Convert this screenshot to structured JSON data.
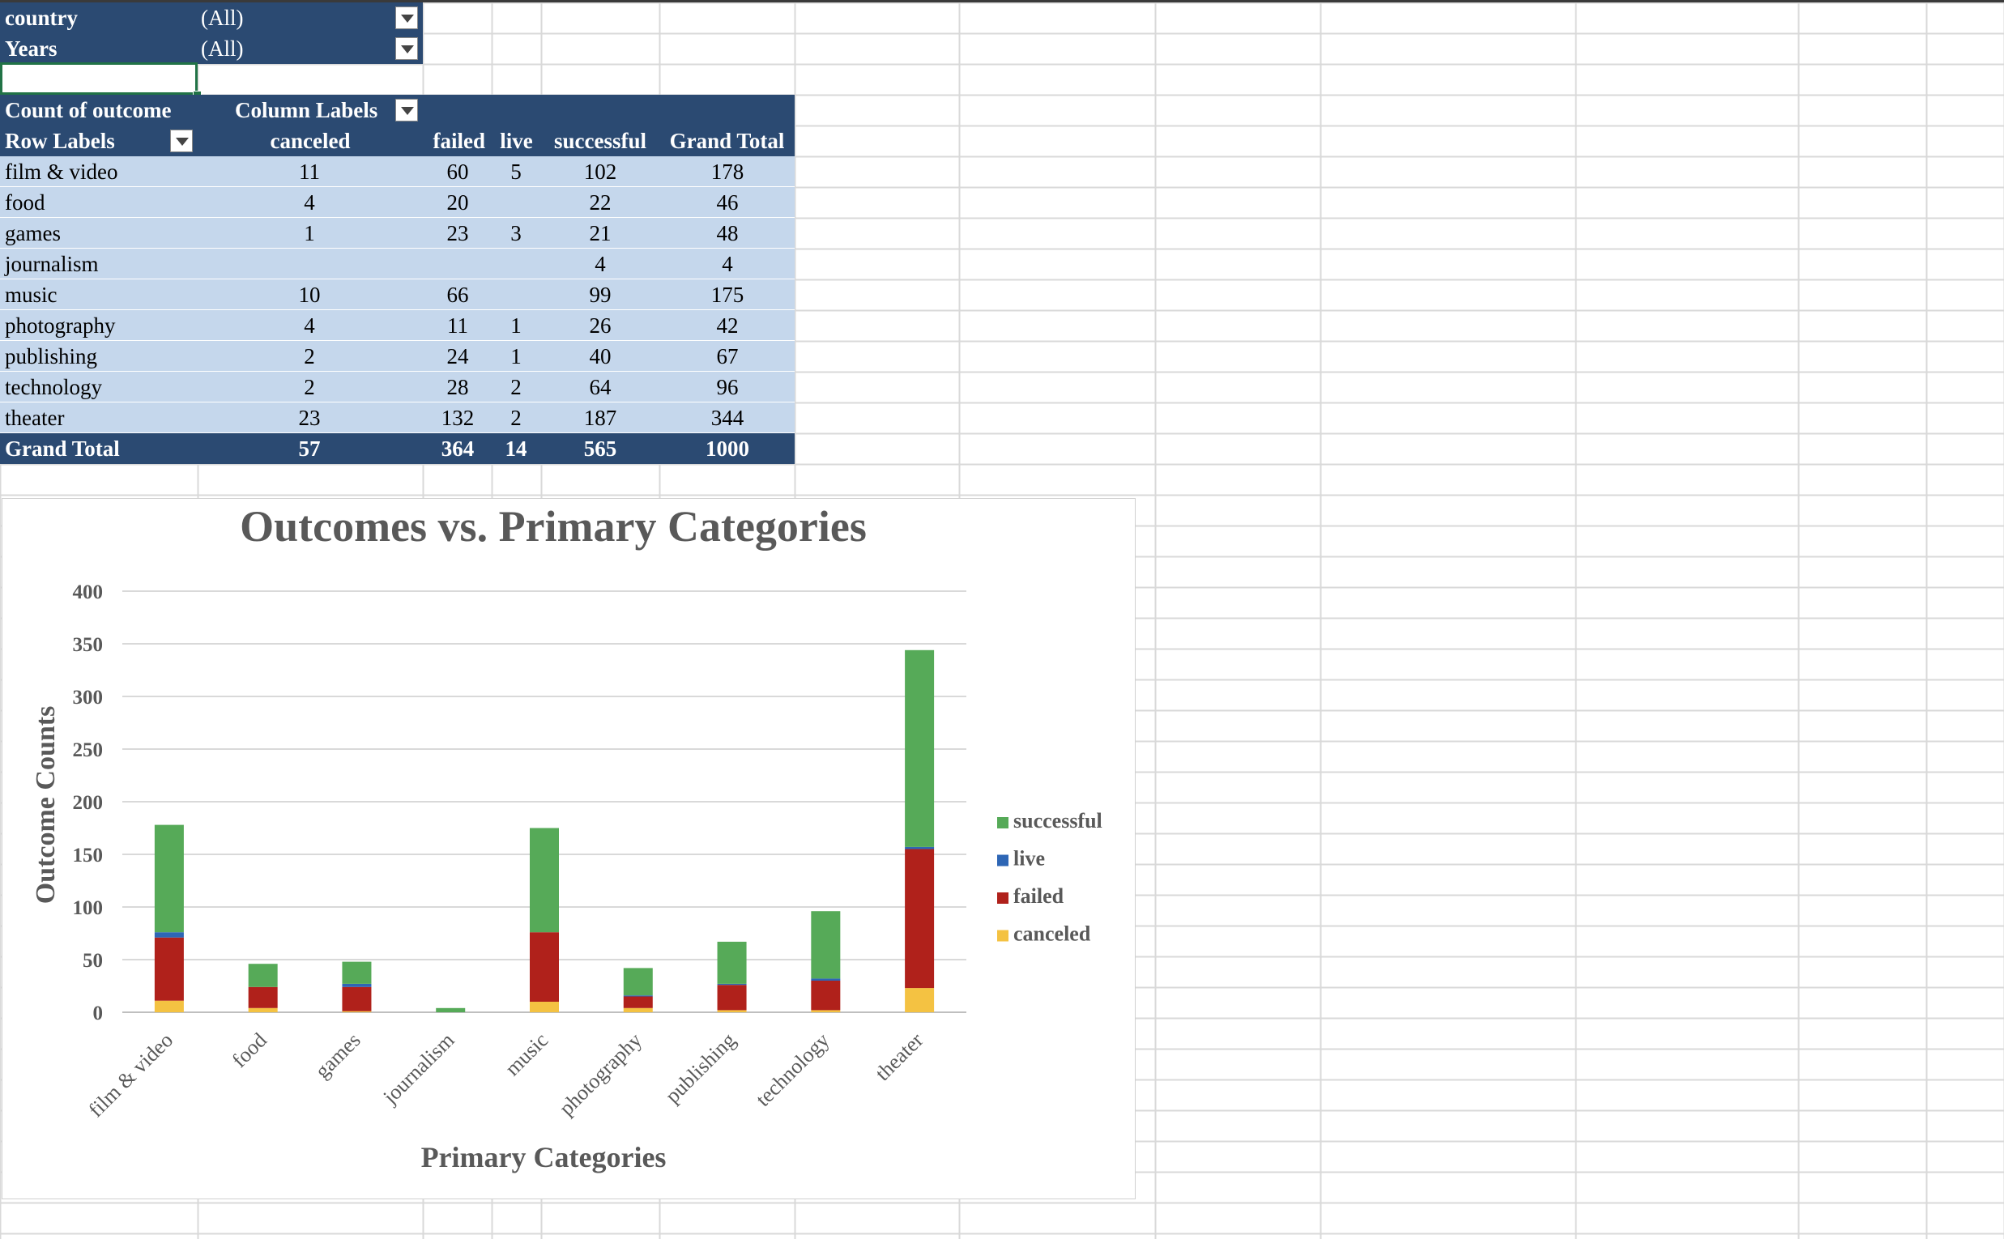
{
  "filters": [
    {
      "field": "country",
      "value": "(All)"
    },
    {
      "field": "Years",
      "value": "(All)"
    }
  ],
  "pivot": {
    "value_label": "Count of outcome",
    "column_labels": "Column Labels",
    "row_labels": "Row Labels",
    "columns": [
      "canceled",
      "failed",
      "live",
      "successful",
      "Grand Total"
    ],
    "rows": [
      {
        "label": "film & video",
        "values": [
          "11",
          "60",
          "5",
          "102",
          "178"
        ]
      },
      {
        "label": "food",
        "values": [
          "4",
          "20",
          "",
          "22",
          "46"
        ]
      },
      {
        "label": "games",
        "values": [
          "1",
          "23",
          "3",
          "21",
          "48"
        ]
      },
      {
        "label": "journalism",
        "values": [
          "",
          "",
          "",
          "4",
          "4"
        ]
      },
      {
        "label": "music",
        "values": [
          "10",
          "66",
          "",
          "99",
          "175"
        ]
      },
      {
        "label": "photography",
        "values": [
          "4",
          "11",
          "1",
          "26",
          "42"
        ]
      },
      {
        "label": "publishing",
        "values": [
          "2",
          "24",
          "1",
          "40",
          "67"
        ]
      },
      {
        "label": "technology",
        "values": [
          "2",
          "28",
          "2",
          "64",
          "96"
        ]
      },
      {
        "label": "theater",
        "values": [
          "23",
          "132",
          "2",
          "187",
          "344"
        ]
      }
    ],
    "total": {
      "label": "Grand Total",
      "values": [
        "57",
        "364",
        "14",
        "565",
        "1000"
      ]
    }
  },
  "chart_data": {
    "type": "bar",
    "stacked": true,
    "title": "Outcomes vs. Primary Categories",
    "xlabel": "Primary Categories",
    "ylabel": "Outcome Counts",
    "ylim": [
      0,
      400
    ],
    "yticks": [
      0,
      50,
      100,
      150,
      200,
      250,
      300,
      350,
      400
    ],
    "grid": true,
    "legend_position": "right",
    "categories": [
      "film & video",
      "food",
      "games",
      "journalism",
      "music",
      "photography",
      "publishing",
      "technology",
      "theater"
    ],
    "series": [
      {
        "name": "canceled",
        "color": "#f4c242",
        "values": [
          11,
          4,
          1,
          0,
          10,
          4,
          2,
          2,
          23
        ]
      },
      {
        "name": "failed",
        "color": "#b0211b",
        "values": [
          60,
          20,
          23,
          0,
          66,
          11,
          24,
          28,
          132
        ]
      },
      {
        "name": "live",
        "color": "#2e66b5",
        "values": [
          5,
          0,
          3,
          0,
          0,
          1,
          1,
          2,
          2
        ]
      },
      {
        "name": "successful",
        "color": "#56aa58",
        "values": [
          102,
          22,
          21,
          4,
          99,
          26,
          40,
          64,
          187
        ]
      }
    ],
    "legend_order": [
      "successful",
      "live",
      "failed",
      "canceled"
    ]
  },
  "colors": {
    "header": "#2b4a72",
    "band": "#c5d7ec",
    "gridline": "#d9d9d9",
    "selection": "#217346"
  },
  "icons": {
    "filter_dropdown": "chevron-down-icon"
  }
}
